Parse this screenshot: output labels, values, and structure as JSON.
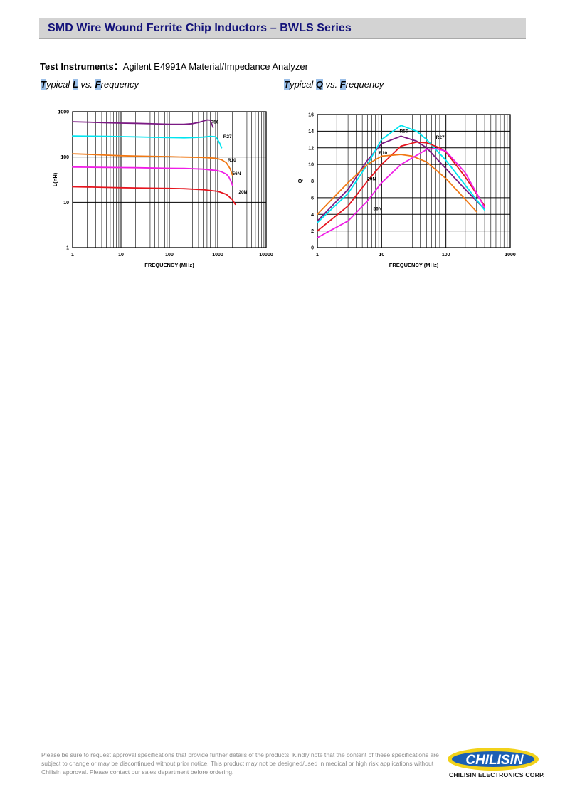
{
  "header": {
    "title": "SMD Wire Wound Ferrite Chip Inductors – BWLS Series"
  },
  "instruments": {
    "label": "Test Instruments：",
    "value": "Agilent E4991A Material/Impedance Analyzer"
  },
  "subtitles": {
    "left": {
      "p1": "T",
      "p2": "ypical ",
      "p3": "L",
      "p4": " vs. ",
      "p5": "F",
      "p6": "requency"
    },
    "right": {
      "p1": "T",
      "p2": "ypical ",
      "p3": "Q",
      "p4": " vs. ",
      "p5": "F",
      "p6": "requency"
    }
  },
  "chart_data": [
    {
      "type": "line",
      "title": "Typical L vs. Frequency",
      "xlabel": "FREQUENCY (MHz)",
      "ylabel": "L(nH)",
      "xscale": "log",
      "yscale": "log",
      "xlim": [
        1,
        10000
      ],
      "ylim": [
        1,
        1000
      ],
      "xticks": [
        "1",
        "10",
        "100",
        "1000",
        "10000"
      ],
      "yticks": [
        "1",
        "10",
        "100",
        "1000"
      ],
      "grid": true,
      "series": [
        {
          "name": "R56",
          "color": "#7b1a84",
          "label_x": 700,
          "label_y": 550,
          "x": [
            1,
            2,
            5,
            10,
            20,
            50,
            100,
            200,
            300,
            400,
            500,
            600,
            700,
            800
          ],
          "y": [
            600,
            590,
            570,
            560,
            555,
            540,
            530,
            530,
            545,
            580,
            620,
            660,
            650,
            450
          ]
        },
        {
          "name": "R27",
          "color": "#00e5f0",
          "label_x": 1300,
          "label_y": 260,
          "x": [
            1,
            2,
            5,
            10,
            20,
            50,
            100,
            200,
            300,
            500,
            700,
            900,
            1000,
            1100,
            1200
          ],
          "y": [
            290,
            288,
            285,
            282,
            278,
            272,
            268,
            265,
            268,
            275,
            285,
            280,
            240,
            200,
            160
          ]
        },
        {
          "name": "R10",
          "color": "#f07814",
          "label_x": 1600,
          "label_y": 80,
          "x": [
            1,
            2,
            5,
            10,
            20,
            50,
            100,
            200,
            500,
            800,
            1000,
            1200,
            1500,
            1800,
            2000
          ],
          "y": [
            118,
            115,
            110,
            107,
            105,
            103,
            102,
            100,
            98,
            95,
            92,
            87,
            75,
            55,
            40
          ]
        },
        {
          "name": "56N",
          "color": "#f01ee6",
          "label_x": 2000,
          "label_y": 40,
          "x": [
            1,
            2,
            5,
            10,
            20,
            50,
            100,
            200,
            500,
            1000,
            1200,
            1500,
            1700,
            1900,
            2000
          ],
          "y": [
            60,
            59.5,
            59,
            58.5,
            58,
            57,
            56.5,
            56,
            54,
            50,
            47,
            42,
            36,
            28,
            24
          ]
        },
        {
          "name": "20N",
          "color": "#e6141e",
          "label_x": 2700,
          "label_y": 15.5,
          "x": [
            1,
            2,
            5,
            10,
            20,
            50,
            100,
            200,
            500,
            1000,
            1500,
            2000,
            2300
          ],
          "y": [
            22,
            21.8,
            21.3,
            21,
            20.8,
            20.5,
            20.3,
            20,
            19,
            17.5,
            15,
            11.5,
            9
          ]
        }
      ]
    },
    {
      "type": "line",
      "title": "Typical Q vs. Frequency",
      "xlabel": "FREQUENCY (MHz)",
      "ylabel": "Q",
      "xscale": "log",
      "xlim": [
        1,
        1000
      ],
      "ylim": [
        0,
        16
      ],
      "xticks": [
        "1",
        "10",
        "100",
        "1000"
      ],
      "yticks": [
        "0",
        "2",
        "4",
        "6",
        "8",
        "10",
        "12",
        "14",
        "16"
      ],
      "grid": true,
      "series": [
        {
          "name": "R56",
          "color": "#7b1a84",
          "label_x": 19,
          "label_y": 13.8,
          "x": [
            1,
            3,
            6,
            10,
            20,
            35,
            50,
            100,
            200,
            400
          ],
          "y": [
            3.2,
            7.0,
            10.5,
            12.5,
            13.4,
            12.8,
            12.0,
            9.5,
            7.0,
            4.6
          ]
        },
        {
          "name": "R27",
          "color": "#00e5f0",
          "label_x": 70,
          "label_y": 13.1,
          "x": [
            1,
            3,
            6,
            10,
            20,
            35,
            50,
            100,
            200,
            400
          ],
          "y": [
            3.0,
            6.5,
            10.0,
            13.0,
            14.7,
            14.0,
            13.0,
            10.5,
            7.5,
            4.5
          ]
        },
        {
          "name": "R10",
          "color": "#e6141e",
          "label_x": 9,
          "label_y": 11.2,
          "x": [
            1,
            3,
            6,
            10,
            20,
            35,
            50,
            80,
            100,
            200,
            400
          ],
          "y": [
            2.0,
            5.0,
            8.0,
            10.0,
            12.2,
            12.7,
            12.6,
            12.0,
            11.5,
            8.5,
            5.0
          ]
        },
        {
          "name": "20N",
          "color": "#f07814",
          "label_x": 6,
          "label_y": 8.1,
          "x": [
            1,
            3,
            6,
            10,
            20,
            30,
            50,
            100,
            200,
            300
          ],
          "y": [
            4.0,
            7.8,
            10.0,
            11.0,
            11.2,
            11.0,
            10.3,
            8.3,
            5.8,
            4.3
          ]
        },
        {
          "name": "56N",
          "color": "#f01ee6",
          "label_x": 7.4,
          "label_y": 4.5,
          "x": [
            1,
            3,
            6,
            10,
            20,
            50,
            70,
            100,
            200,
            400
          ],
          "y": [
            1.2,
            3.2,
            5.6,
            7.8,
            10.0,
            11.8,
            11.9,
            11.6,
            9.0,
            4.8
          ]
        }
      ]
    }
  ],
  "footer": {
    "note": "Please be sure to request approval specifications that provide further details of the products. Kindly note that the content of these specifications are subject to change or may be discontinued without prior notice. This product may not be designed/used in medical or high risk applications without Chilisin approval. Please contact our sales department before ordering.",
    "logo_text": "CHILISIN",
    "company": "CHILISIN ELECTRONICS CORP."
  }
}
